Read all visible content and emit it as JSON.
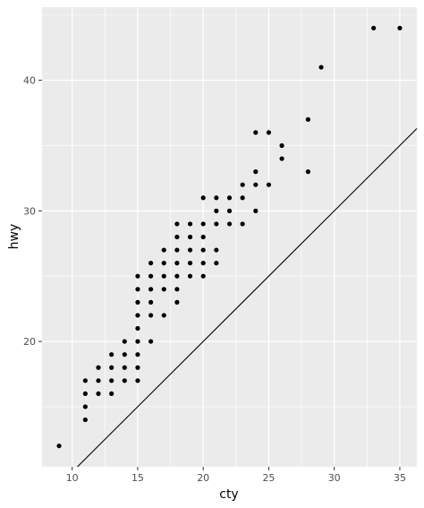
{
  "chart_data": {
    "type": "scatter",
    "title": "",
    "xlabel": "cty",
    "ylabel": "hwy",
    "xlim": [
      7.7,
      36.3
    ],
    "ylim": [
      10.4,
      45.6
    ],
    "x_ticks": [
      10,
      15,
      20,
      25,
      30,
      35
    ],
    "y_ticks": [
      20,
      30,
      40
    ],
    "grid": true,
    "background": "#ebebeb",
    "grid_color": "#ffffff",
    "point_color": "#000000",
    "reference_line": {
      "slope": 1,
      "intercept": 0,
      "color": "#000000"
    },
    "points": [
      [
        9,
        12
      ],
      [
        11,
        14
      ],
      [
        11,
        15
      ],
      [
        11,
        16
      ],
      [
        11,
        17
      ],
      [
        12,
        16
      ],
      [
        12,
        17
      ],
      [
        12,
        18
      ],
      [
        13,
        16
      ],
      [
        13,
        17
      ],
      [
        13,
        18
      ],
      [
        13,
        19
      ],
      [
        14,
        17
      ],
      [
        14,
        18
      ],
      [
        14,
        19
      ],
      [
        14,
        20
      ],
      [
        15,
        17
      ],
      [
        15,
        18
      ],
      [
        15,
        19
      ],
      [
        15,
        20
      ],
      [
        15,
        21
      ],
      [
        15,
        22
      ],
      [
        15,
        23
      ],
      [
        15,
        24
      ],
      [
        15,
        25
      ],
      [
        16,
        20
      ],
      [
        16,
        22
      ],
      [
        16,
        23
      ],
      [
        16,
        24
      ],
      [
        16,
        25
      ],
      [
        16,
        26
      ],
      [
        17,
        22
      ],
      [
        17,
        24
      ],
      [
        17,
        25
      ],
      [
        17,
        26
      ],
      [
        17,
        27
      ],
      [
        18,
        23
      ],
      [
        18,
        24
      ],
      [
        18,
        25
      ],
      [
        18,
        26
      ],
      [
        18,
        27
      ],
      [
        18,
        28
      ],
      [
        18,
        29
      ],
      [
        19,
        25
      ],
      [
        19,
        26
      ],
      [
        19,
        27
      ],
      [
        19,
        28
      ],
      [
        19,
        29
      ],
      [
        20,
        25
      ],
      [
        20,
        26
      ],
      [
        20,
        27
      ],
      [
        20,
        28
      ],
      [
        20,
        29
      ],
      [
        20,
        31
      ],
      [
        21,
        26
      ],
      [
        21,
        27
      ],
      [
        21,
        29
      ],
      [
        21,
        30
      ],
      [
        21,
        31
      ],
      [
        22,
        29
      ],
      [
        22,
        30
      ],
      [
        22,
        31
      ],
      [
        23,
        29
      ],
      [
        23,
        31
      ],
      [
        23,
        32
      ],
      [
        24,
        30
      ],
      [
        24,
        32
      ],
      [
        24,
        33
      ],
      [
        24,
        36
      ],
      [
        25,
        32
      ],
      [
        25,
        36
      ],
      [
        26,
        34
      ],
      [
        26,
        35
      ],
      [
        28,
        33
      ],
      [
        28,
        37
      ],
      [
        29,
        41
      ],
      [
        33,
        44
      ],
      [
        35,
        44
      ]
    ]
  }
}
